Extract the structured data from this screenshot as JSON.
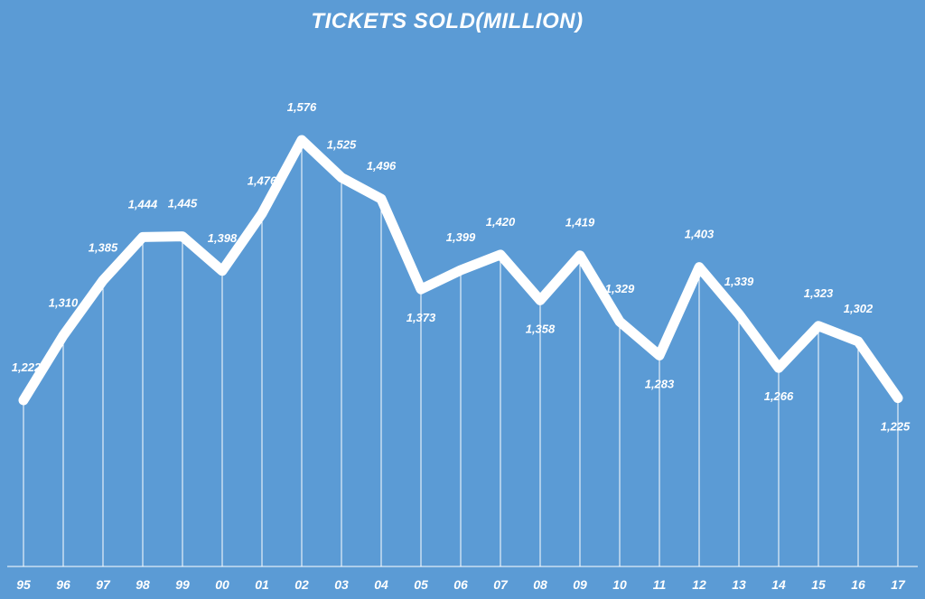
{
  "chart_data": {
    "type": "line",
    "title": "TICKETS SOLD(MILLION)",
    "xlabel": "",
    "ylabel": "",
    "categories": [
      "95",
      "96",
      "97",
      "98",
      "99",
      "00",
      "01",
      "02",
      "03",
      "04",
      "05",
      "06",
      "07",
      "08",
      "09",
      "10",
      "11",
      "12",
      "13",
      "14",
      "15",
      "16",
      "17"
    ],
    "series": [
      {
        "name": "Tickets Sold (Million)",
        "values": [
          1222,
          1310,
          1385,
          1444,
          1445,
          1398,
          1476,
          1576,
          1525,
          1496,
          1373,
          1399,
          1420,
          1358,
          1419,
          1329,
          1283,
          1403,
          1339,
          1266,
          1323,
          1302,
          1225
        ],
        "labels": [
          "1,222",
          "1,310",
          "1,385",
          "1,444",
          "1,445",
          "1,398",
          "1,476",
          "1,576",
          "1,525",
          "1,496",
          "1,373",
          "1,399",
          "1,420",
          "1,358",
          "1,419",
          "1,329",
          "1,283",
          "1,403",
          "1,339",
          "1,266",
          "1,323",
          "1,302",
          "1,225"
        ]
      }
    ],
    "label_placement": [
      "above",
      "above",
      "above",
      "above",
      "above",
      "above",
      "above",
      "above",
      "above",
      "above",
      "below",
      "above",
      "above",
      "below",
      "above",
      "above",
      "below",
      "above",
      "above",
      "below",
      "above",
      "above",
      "below"
    ],
    "ylim": [
      900,
      1600
    ],
    "grid": false,
    "drop_lines": true,
    "legend": "none"
  },
  "colors": {
    "background": "#5b9bd5",
    "line": "#ffffff",
    "text": "#ffffff"
  }
}
